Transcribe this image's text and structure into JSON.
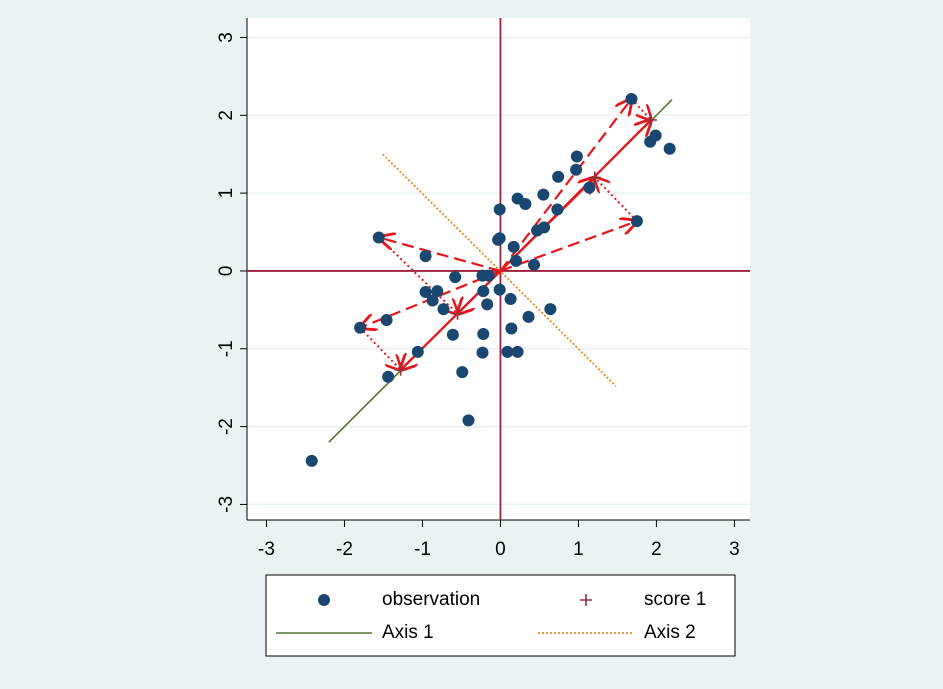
{
  "chart_data": {
    "type": "scatter",
    "xlim": [
      -3.25,
      3.2
    ],
    "ylim": [
      -3.2,
      3.25
    ],
    "xticks": [
      -3,
      -2,
      -1,
      0,
      1,
      2,
      3
    ],
    "yticks": [
      -3,
      -2,
      -1,
      0,
      1,
      2,
      3
    ],
    "grid": true,
    "legend": "bottom",
    "series": [
      {
        "name": "observation",
        "kind": "points",
        "color": "#1a476f",
        "x": [
          1.68,
          1.99,
          1.92,
          2.17,
          0.98,
          0.97,
          0.74,
          1.14,
          0.55,
          0.22,
          0.32,
          -0.01,
          0.73,
          0.56,
          0.47,
          1.75,
          -0.01,
          -0.03,
          -1.56,
          0.17,
          -0.96,
          0.2,
          0.43,
          -0.58,
          -0.23,
          -0.15,
          -0.22,
          -0.96,
          -0.81,
          -0.01,
          0.13,
          -0.87,
          -0.17,
          -0.73,
          0.64,
          0.36,
          -1.46,
          -1.8,
          -0.61,
          -0.22,
          0.14,
          -1.06,
          -0.23,
          0.09,
          0.22,
          -0.49,
          -1.44,
          -0.41,
          -2.42
        ],
        "y": [
          2.21,
          1.74,
          1.66,
          1.57,
          1.47,
          1.3,
          1.21,
          1.07,
          0.98,
          0.93,
          0.86,
          0.79,
          0.79,
          0.56,
          0.52,
          0.64,
          0.42,
          0.4,
          0.43,
          0.31,
          0.19,
          0.13,
          0.08,
          -0.08,
          -0.06,
          -0.06,
          -0.26,
          -0.27,
          -0.26,
          -0.24,
          -0.36,
          -0.38,
          -0.43,
          -0.49,
          -0.49,
          -0.59,
          -0.63,
          -0.73,
          -0.82,
          -0.81,
          -0.74,
          -1.04,
          -1.05,
          -1.04,
          -1.04,
          -1.3,
          -1.36,
          -1.92,
          -2.44
        ]
      },
      {
        "name": "score 1",
        "kind": "plus",
        "color": "#90353b",
        "x": [
          1.93,
          1.21,
          -0.55,
          -1.28
        ],
        "y": [
          1.94,
          1.2,
          -0.55,
          -1.27
        ]
      },
      {
        "name": "Axis 1",
        "kind": "line",
        "color": "#55752f",
        "dash": "solid",
        "x": [
          -2.2,
          2.2
        ],
        "y": [
          -2.2,
          2.2
        ]
      },
      {
        "name": "Axis 2",
        "kind": "line",
        "color": "#e37e00",
        "dash": "dotted",
        "x": [
          -1.51,
          1.48
        ],
        "y": [
          1.5,
          -1.48
        ]
      }
    ],
    "projections": {
      "color": "#e8141c",
      "x": [
        1.68,
        1.75,
        -1.56,
        -1.8
      ],
      "y": [
        2.21,
        0.64,
        0.43,
        -0.73
      ]
    },
    "reference_line_color": "#a0203c"
  }
}
